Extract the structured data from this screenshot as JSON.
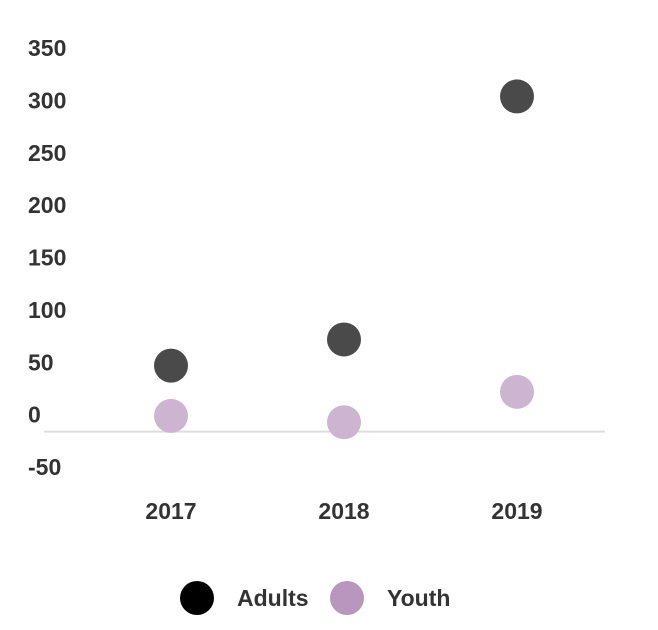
{
  "chart_data": {
    "type": "scatter",
    "title": "",
    "xlabel": "",
    "ylabel": "",
    "categories": [
      "2017",
      "2018",
      "2019"
    ],
    "ylim": [
      -50,
      350
    ],
    "yticks": [
      350,
      300,
      250,
      200,
      150,
      100,
      50,
      0,
      -50
    ],
    "series": [
      {
        "name": "Adults",
        "values": [
          63,
          88,
          320
        ],
        "color": "#4a4a4a"
      },
      {
        "name": "Youth",
        "values": [
          15,
          9,
          38
        ],
        "color": "#cdb4d1"
      }
    ],
    "legend": {
      "position": "bottom",
      "items": [
        {
          "label": "Adults",
          "color": "#000000"
        },
        {
          "label": "Youth",
          "color": "#b996bd"
        }
      ]
    },
    "zero_line_color": "#dddddd"
  }
}
